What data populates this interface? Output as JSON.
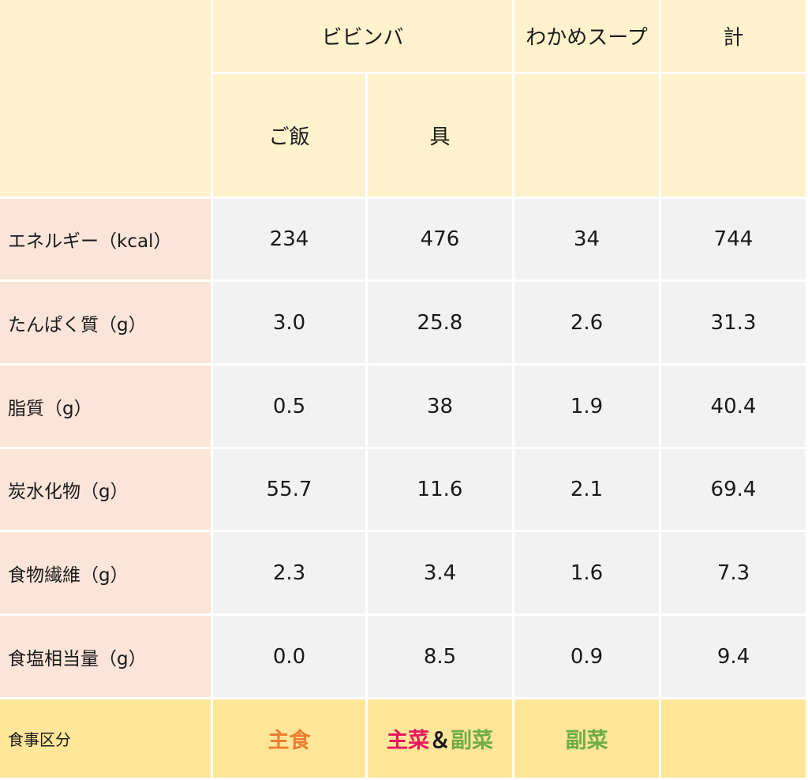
{
  "header": {
    "bibimbap": "ビビンバ",
    "soup": "わかめスープ",
    "total": "計",
    "rice": "ご飯",
    "toppings": "具"
  },
  "rows": [
    {
      "label": "エネルギー（kcal）",
      "values": [
        "234",
        "476",
        "34",
        "744"
      ]
    },
    {
      "label": "たんぱく質（g）",
      "values": [
        "3.0",
        "25.8",
        "2.6",
        "31.3"
      ]
    },
    {
      "label": "脂質（g）",
      "values": [
        "0.5",
        "38",
        "1.9",
        "40.4"
      ]
    },
    {
      "label": "炭水化物（g）",
      "values": [
        "55.7",
        "11.6",
        "2.1",
        "69.4"
      ]
    },
    {
      "label": "食物繊維（g）",
      "values": [
        "2.3",
        "3.4",
        "1.6",
        "7.3"
      ]
    },
    {
      "label": "食塩相当量（g）",
      "values": [
        "0.0",
        "8.5",
        "0.9",
        "9.4"
      ]
    }
  ],
  "category": {
    "label": "食事区分",
    "rice": {
      "text": "主食",
      "color": "#ed7d31"
    },
    "toppings": [
      {
        "text": "主菜",
        "color": "#e8175d"
      },
      {
        "text": "＆",
        "color": "#1a1a1a"
      },
      {
        "text": "副菜",
        "color": "#70ad47"
      }
    ],
    "soup": {
      "text": "副菜",
      "color": "#70ad47"
    },
    "total": ""
  },
  "colors": {
    "header_bg": "#fff2cc",
    "label_bg": "#fbe4d9",
    "value_bg": "#f2f2f2",
    "category_bg": "#ffe699"
  }
}
